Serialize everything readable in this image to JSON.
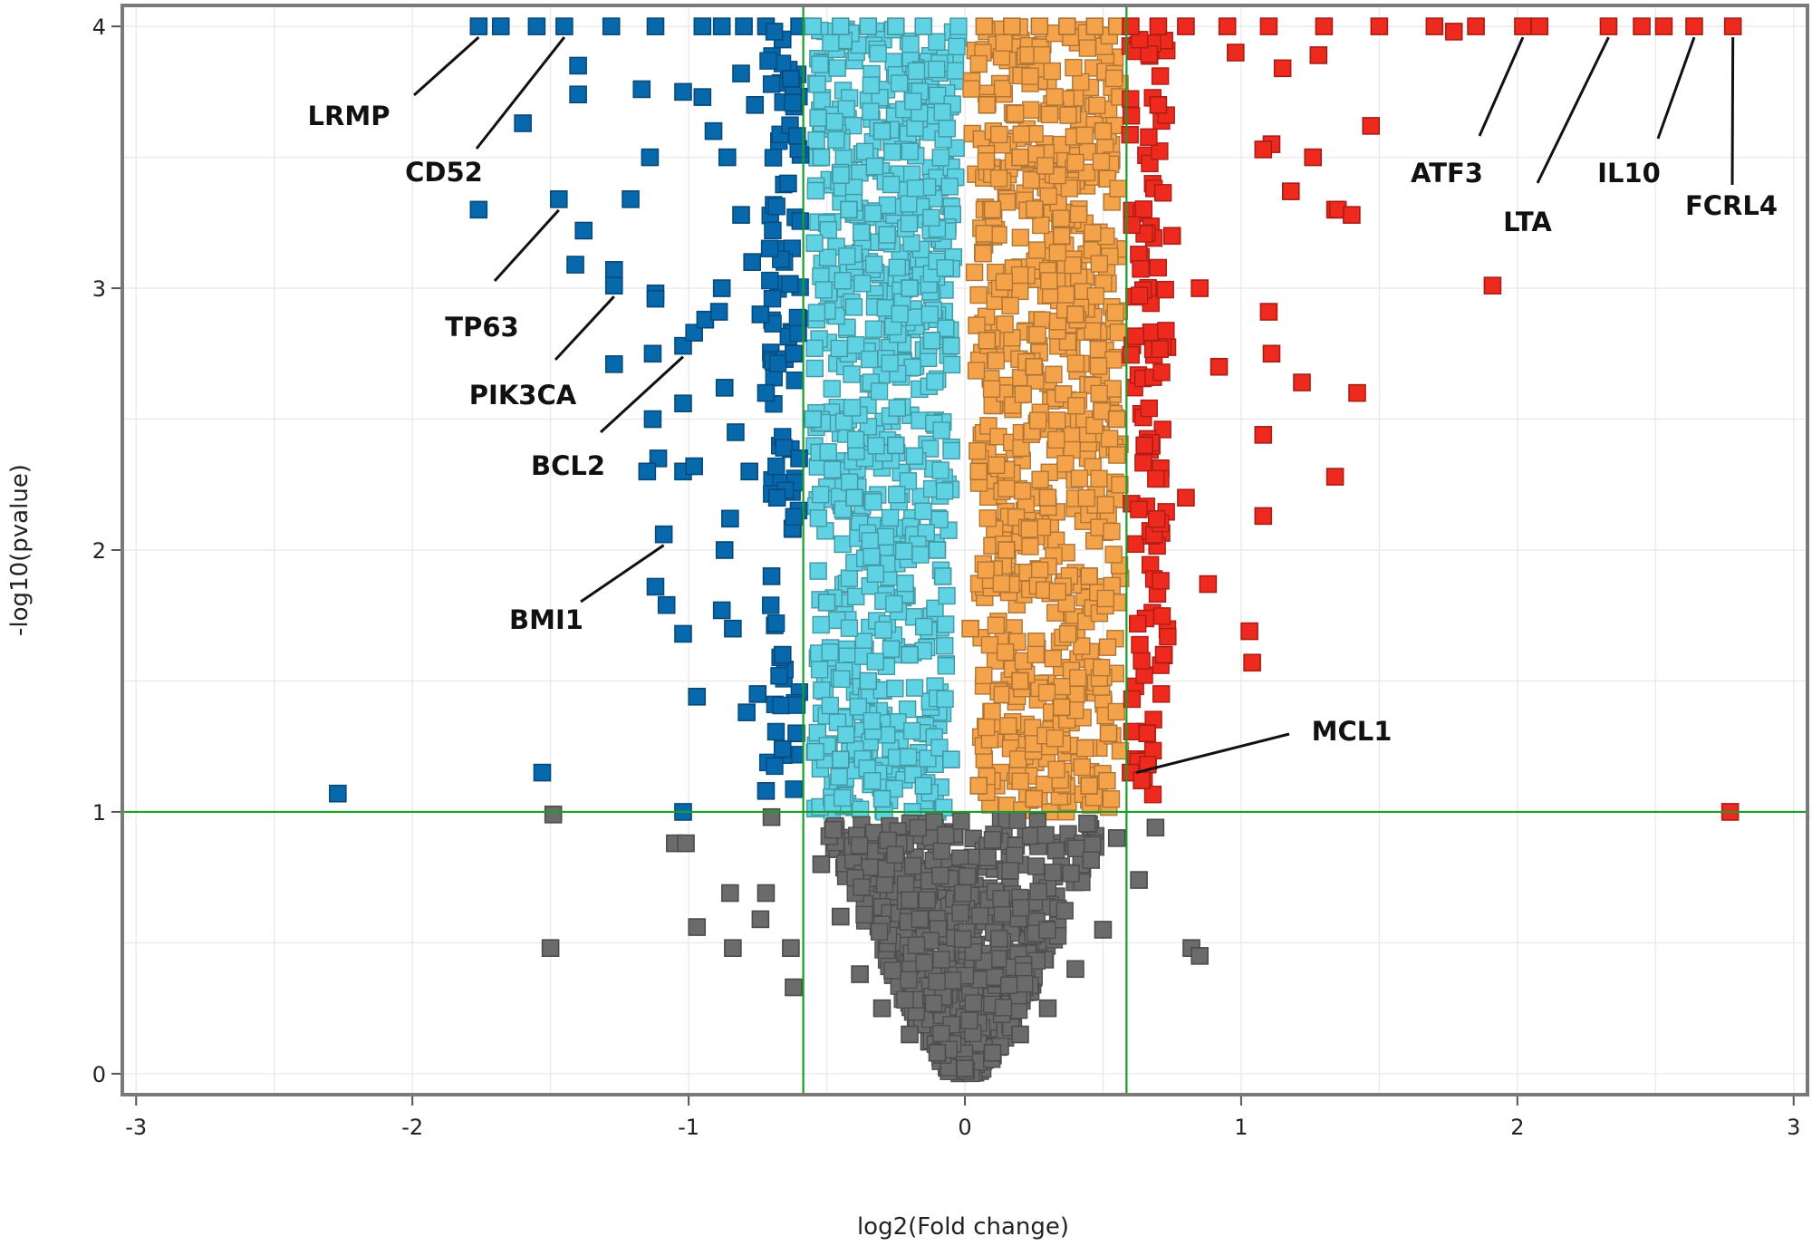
{
  "chart_data": {
    "type": "scatter",
    "title": "",
    "xlabel": "log2(Fold change)",
    "ylabel": "-log10(pvalue)",
    "xlim": [
      -3.05,
      3.05
    ],
    "ylim": [
      -0.08,
      4.08
    ],
    "x_ticks": [
      -3,
      -2,
      -1,
      0,
      1,
      2,
      3
    ],
    "x_tick_labels": [
      "-3",
      "-2",
      "-1",
      "0",
      "1",
      "2",
      "3"
    ],
    "y_ticks": [
      0,
      1,
      2,
      3,
      4
    ],
    "y_tick_labels": [
      "0",
      "1",
      "2",
      "3",
      "4"
    ],
    "grid": true,
    "legend": "none",
    "thresholds": {
      "log2fc": [
        -0.585,
        0.585
      ],
      "neg_log10_p": 1,
      "line_color": "#1a9e2a"
    },
    "series": [
      {
        "color": "#0868ac",
        "values": [
          [
            -1.76,
            4
          ],
          [
            -1.68,
            4
          ],
          [
            -1.55,
            4
          ],
          [
            -1.45,
            4
          ],
          [
            -1.4,
            3.85
          ],
          [
            -1.4,
            3.74
          ],
          [
            -1.6,
            3.63
          ],
          [
            -1.76,
            3.3
          ],
          [
            -1.47,
            3.34
          ],
          [
            -1.38,
            3.22
          ],
          [
            -1.41,
            3.09
          ],
          [
            -1.27,
            3.07
          ],
          [
            -1.27,
            3.01
          ],
          [
            -1.12,
            2.98
          ],
          [
            -1.12,
            2.96
          ],
          [
            -1.21,
            3.34
          ],
          [
            -1.17,
            3.76
          ],
          [
            -1.14,
            3.5
          ],
          [
            -1.02,
            3.75
          ],
          [
            -0.95,
            3.73
          ],
          [
            -1.27,
            2.71
          ],
          [
            -1.13,
            2.75
          ],
          [
            -1.02,
            2.78
          ],
          [
            -0.98,
            2.83
          ],
          [
            -0.94,
            2.88
          ],
          [
            -0.89,
            2.91
          ],
          [
            -1.13,
            2.5
          ],
          [
            -1.02,
            2.56
          ],
          [
            -1.11,
            2.35
          ],
          [
            -1.15,
            2.3
          ],
          [
            -1.02,
            2.3
          ],
          [
            -0.98,
            2.32
          ],
          [
            -1.09,
            2.06
          ],
          [
            -1.12,
            1.86
          ],
          [
            -1.08,
            1.79
          ],
          [
            -1.02,
            1.68
          ],
          [
            -0.97,
            1.44
          ],
          [
            -1.53,
            1.15
          ],
          [
            -2.27,
            1.07
          ],
          [
            -1.02,
            1.0
          ],
          [
            -0.87,
            2.62
          ],
          [
            -0.83,
            2.45
          ],
          [
            -0.85,
            2.12
          ],
          [
            -0.87,
            2.0
          ],
          [
            -0.78,
            2.3
          ],
          [
            -0.88,
            1.77
          ],
          [
            -0.84,
            1.7
          ],
          [
            -0.75,
            1.45
          ],
          [
            -0.79,
            1.38
          ],
          [
            -0.72,
            1.08
          ],
          [
            -0.91,
            3.6
          ],
          [
            -0.86,
            3.5
          ],
          [
            -0.81,
            3.28
          ],
          [
            -0.77,
            3.1
          ],
          [
            -0.88,
            3.0
          ],
          [
            -0.74,
            2.9
          ],
          [
            -0.81,
            3.82
          ],
          [
            -0.76,
            3.7
          ],
          [
            -0.72,
            2.6
          ],
          [
            -0.68,
            2.2
          ],
          [
            -0.7,
            1.9
          ],
          [
            -0.66,
            1.6
          ],
          [
            -0.66,
            1.24
          ],
          [
            -0.63,
            3.8
          ],
          [
            -0.64,
            3.4
          ],
          [
            -0.62,
            2.75
          ],
          [
            -0.6,
            2.35
          ],
          [
            -0.61,
            1.3
          ],
          [
            -0.66,
            3.95
          ],
          [
            -0.95,
            4
          ],
          [
            -0.88,
            4
          ],
          [
            -0.8,
            4
          ],
          [
            -0.72,
            4
          ],
          [
            -0.69,
            3.98
          ],
          [
            -1.28,
            4
          ],
          [
            -1.12,
            4
          ],
          [
            -0.6,
            4
          ]
        ]
      },
      {
        "color": "#5fd3e3",
        "values": [
          [
            -0.55,
            4
          ],
          [
            -0.45,
            4
          ],
          [
            -0.35,
            4
          ],
          [
            -0.25,
            4
          ],
          [
            -0.15,
            4
          ],
          [
            -0.52,
            3.5
          ],
          [
            -0.42,
            3.3
          ],
          [
            -0.3,
            3.6
          ],
          [
            -0.2,
            3.0
          ],
          [
            -0.12,
            2.8
          ],
          [
            -0.05,
            2.78
          ],
          [
            -0.55,
            2.5
          ],
          [
            -0.4,
            2.2
          ],
          [
            -0.25,
            2.4
          ],
          [
            -0.1,
            2.0
          ],
          [
            -0.5,
            1.8
          ],
          [
            -0.35,
            1.5
          ],
          [
            -0.2,
            1.6
          ],
          [
            -0.08,
            1.9
          ],
          [
            -0.45,
            1.2
          ],
          [
            -0.3,
            1.05
          ],
          [
            -0.15,
            1.1
          ],
          [
            -0.05,
            1.2
          ]
        ]
      },
      {
        "color": "#f5a34a",
        "values": [
          [
            0.07,
            4
          ],
          [
            0.17,
            4
          ],
          [
            0.27,
            4
          ],
          [
            0.37,
            4
          ],
          [
            0.47,
            4
          ],
          [
            0.55,
            4
          ],
          [
            0.08,
            3.7
          ],
          [
            0.1,
            3.3
          ],
          [
            0.2,
            3.5
          ],
          [
            0.35,
            3.2
          ],
          [
            0.5,
            3.6
          ],
          [
            0.08,
            2.8
          ],
          [
            0.25,
            2.7
          ],
          [
            0.4,
            2.9
          ],
          [
            0.55,
            2.5
          ],
          [
            0.05,
            2.3
          ],
          [
            0.15,
            2.0
          ],
          [
            0.3,
            2.2
          ],
          [
            0.45,
            1.9
          ],
          [
            0.02,
            1.7
          ],
          [
            0.2,
            1.5
          ],
          [
            0.35,
            1.4
          ],
          [
            0.52,
            1.3
          ],
          [
            0.05,
            1.1
          ],
          [
            0.25,
            1.05
          ],
          [
            0.45,
            1.1
          ]
        ]
      },
      {
        "color": "#ee2a1e",
        "values": [
          [
            0.6,
            4
          ],
          [
            0.7,
            4
          ],
          [
            0.8,
            4
          ],
          [
            0.95,
            4
          ],
          [
            1.1,
            4
          ],
          [
            1.3,
            4
          ],
          [
            1.5,
            4
          ],
          [
            1.7,
            4
          ],
          [
            1.85,
            4
          ],
          [
            1.77,
            3.98
          ],
          [
            2.02,
            4
          ],
          [
            2.08,
            4
          ],
          [
            2.33,
            4
          ],
          [
            2.45,
            4
          ],
          [
            2.53,
            4
          ],
          [
            2.64,
            4
          ],
          [
            2.78,
            4
          ],
          [
            0.98,
            3.9
          ],
          [
            1.15,
            3.84
          ],
          [
            1.28,
            3.89
          ],
          [
            1.47,
            3.62
          ],
          [
            1.11,
            3.55
          ],
          [
            1.08,
            3.53
          ],
          [
            1.26,
            3.5
          ],
          [
            1.34,
            3.3
          ],
          [
            1.35,
            3.3
          ],
          [
            1.4,
            3.28
          ],
          [
            1.18,
            3.37
          ],
          [
            1.91,
            3.01
          ],
          [
            1.1,
            2.91
          ],
          [
            1.11,
            2.75
          ],
          [
            1.22,
            2.64
          ],
          [
            1.42,
            2.6
          ],
          [
            1.34,
            2.28
          ],
          [
            1.08,
            2.44
          ],
          [
            1.08,
            2.13
          ],
          [
            1.03,
            1.69
          ],
          [
            1.04,
            1.57
          ],
          [
            0.7,
            3.7
          ],
          [
            0.75,
            3.2
          ],
          [
            0.85,
            3.0
          ],
          [
            0.92,
            2.7
          ],
          [
            0.65,
            2.4
          ],
          [
            0.8,
            2.2
          ],
          [
            0.88,
            1.87
          ],
          [
            0.72,
            1.6
          ],
          [
            0.66,
            1.3
          ],
          [
            0.6,
            1.15
          ],
          [
            0.64,
            1.12
          ],
          [
            2.77,
            1.0
          ]
        ]
      },
      {
        "color": "#6b6b6b",
        "values": [
          [
            -1.49,
            0.99
          ],
          [
            -1.5,
            0.48
          ],
          [
            -1.05,
            0.88
          ],
          [
            -1.01,
            0.88
          ],
          [
            -0.97,
            0.56
          ],
          [
            -0.85,
            0.69
          ],
          [
            -0.84,
            0.48
          ],
          [
            -0.72,
            0.69
          ],
          [
            -0.74,
            0.59
          ],
          [
            -0.7,
            0.98
          ],
          [
            -0.63,
            0.48
          ],
          [
            -0.62,
            0.33
          ],
          [
            -0.52,
            0.8
          ],
          [
            -0.45,
            0.6
          ],
          [
            -0.38,
            0.38
          ],
          [
            -0.3,
            0.25
          ],
          [
            -0.2,
            0.15
          ],
          [
            -0.1,
            0.08
          ],
          [
            0.0,
            0.02
          ],
          [
            0.1,
            0.08
          ],
          [
            0.2,
            0.15
          ],
          [
            0.3,
            0.25
          ],
          [
            0.4,
            0.4
          ],
          [
            0.5,
            0.55
          ],
          [
            0.55,
            0.9
          ],
          [
            0.63,
            0.74
          ],
          [
            0.69,
            0.94
          ],
          [
            0.82,
            0.48
          ],
          [
            0.85,
            0.45
          ]
        ]
      }
    ],
    "annotations": [
      {
        "text": "LRMP",
        "x": -1.76,
        "y": 4
      },
      {
        "text": "CD52",
        "x": -1.45,
        "y": 4
      },
      {
        "text": "TP63",
        "x": -1.47,
        "y": 3.34
      },
      {
        "text": "PIK3CA",
        "x": -1.27,
        "y": 3.01
      },
      {
        "text": "BCL2",
        "x": -1.02,
        "y": 2.78
      },
      {
        "text": "BMI1",
        "x": -1.09,
        "y": 2.06
      },
      {
        "text": "ATF3",
        "x": 2.02,
        "y": 4
      },
      {
        "text": "LTA",
        "x": 2.33,
        "y": 4
      },
      {
        "text": "IL10",
        "x": 2.64,
        "y": 4
      },
      {
        "text": "FCRL4",
        "x": 2.78,
        "y": 4
      },
      {
        "text": "MCL1",
        "x": 0.62,
        "y": 1.15
      }
    ]
  }
}
